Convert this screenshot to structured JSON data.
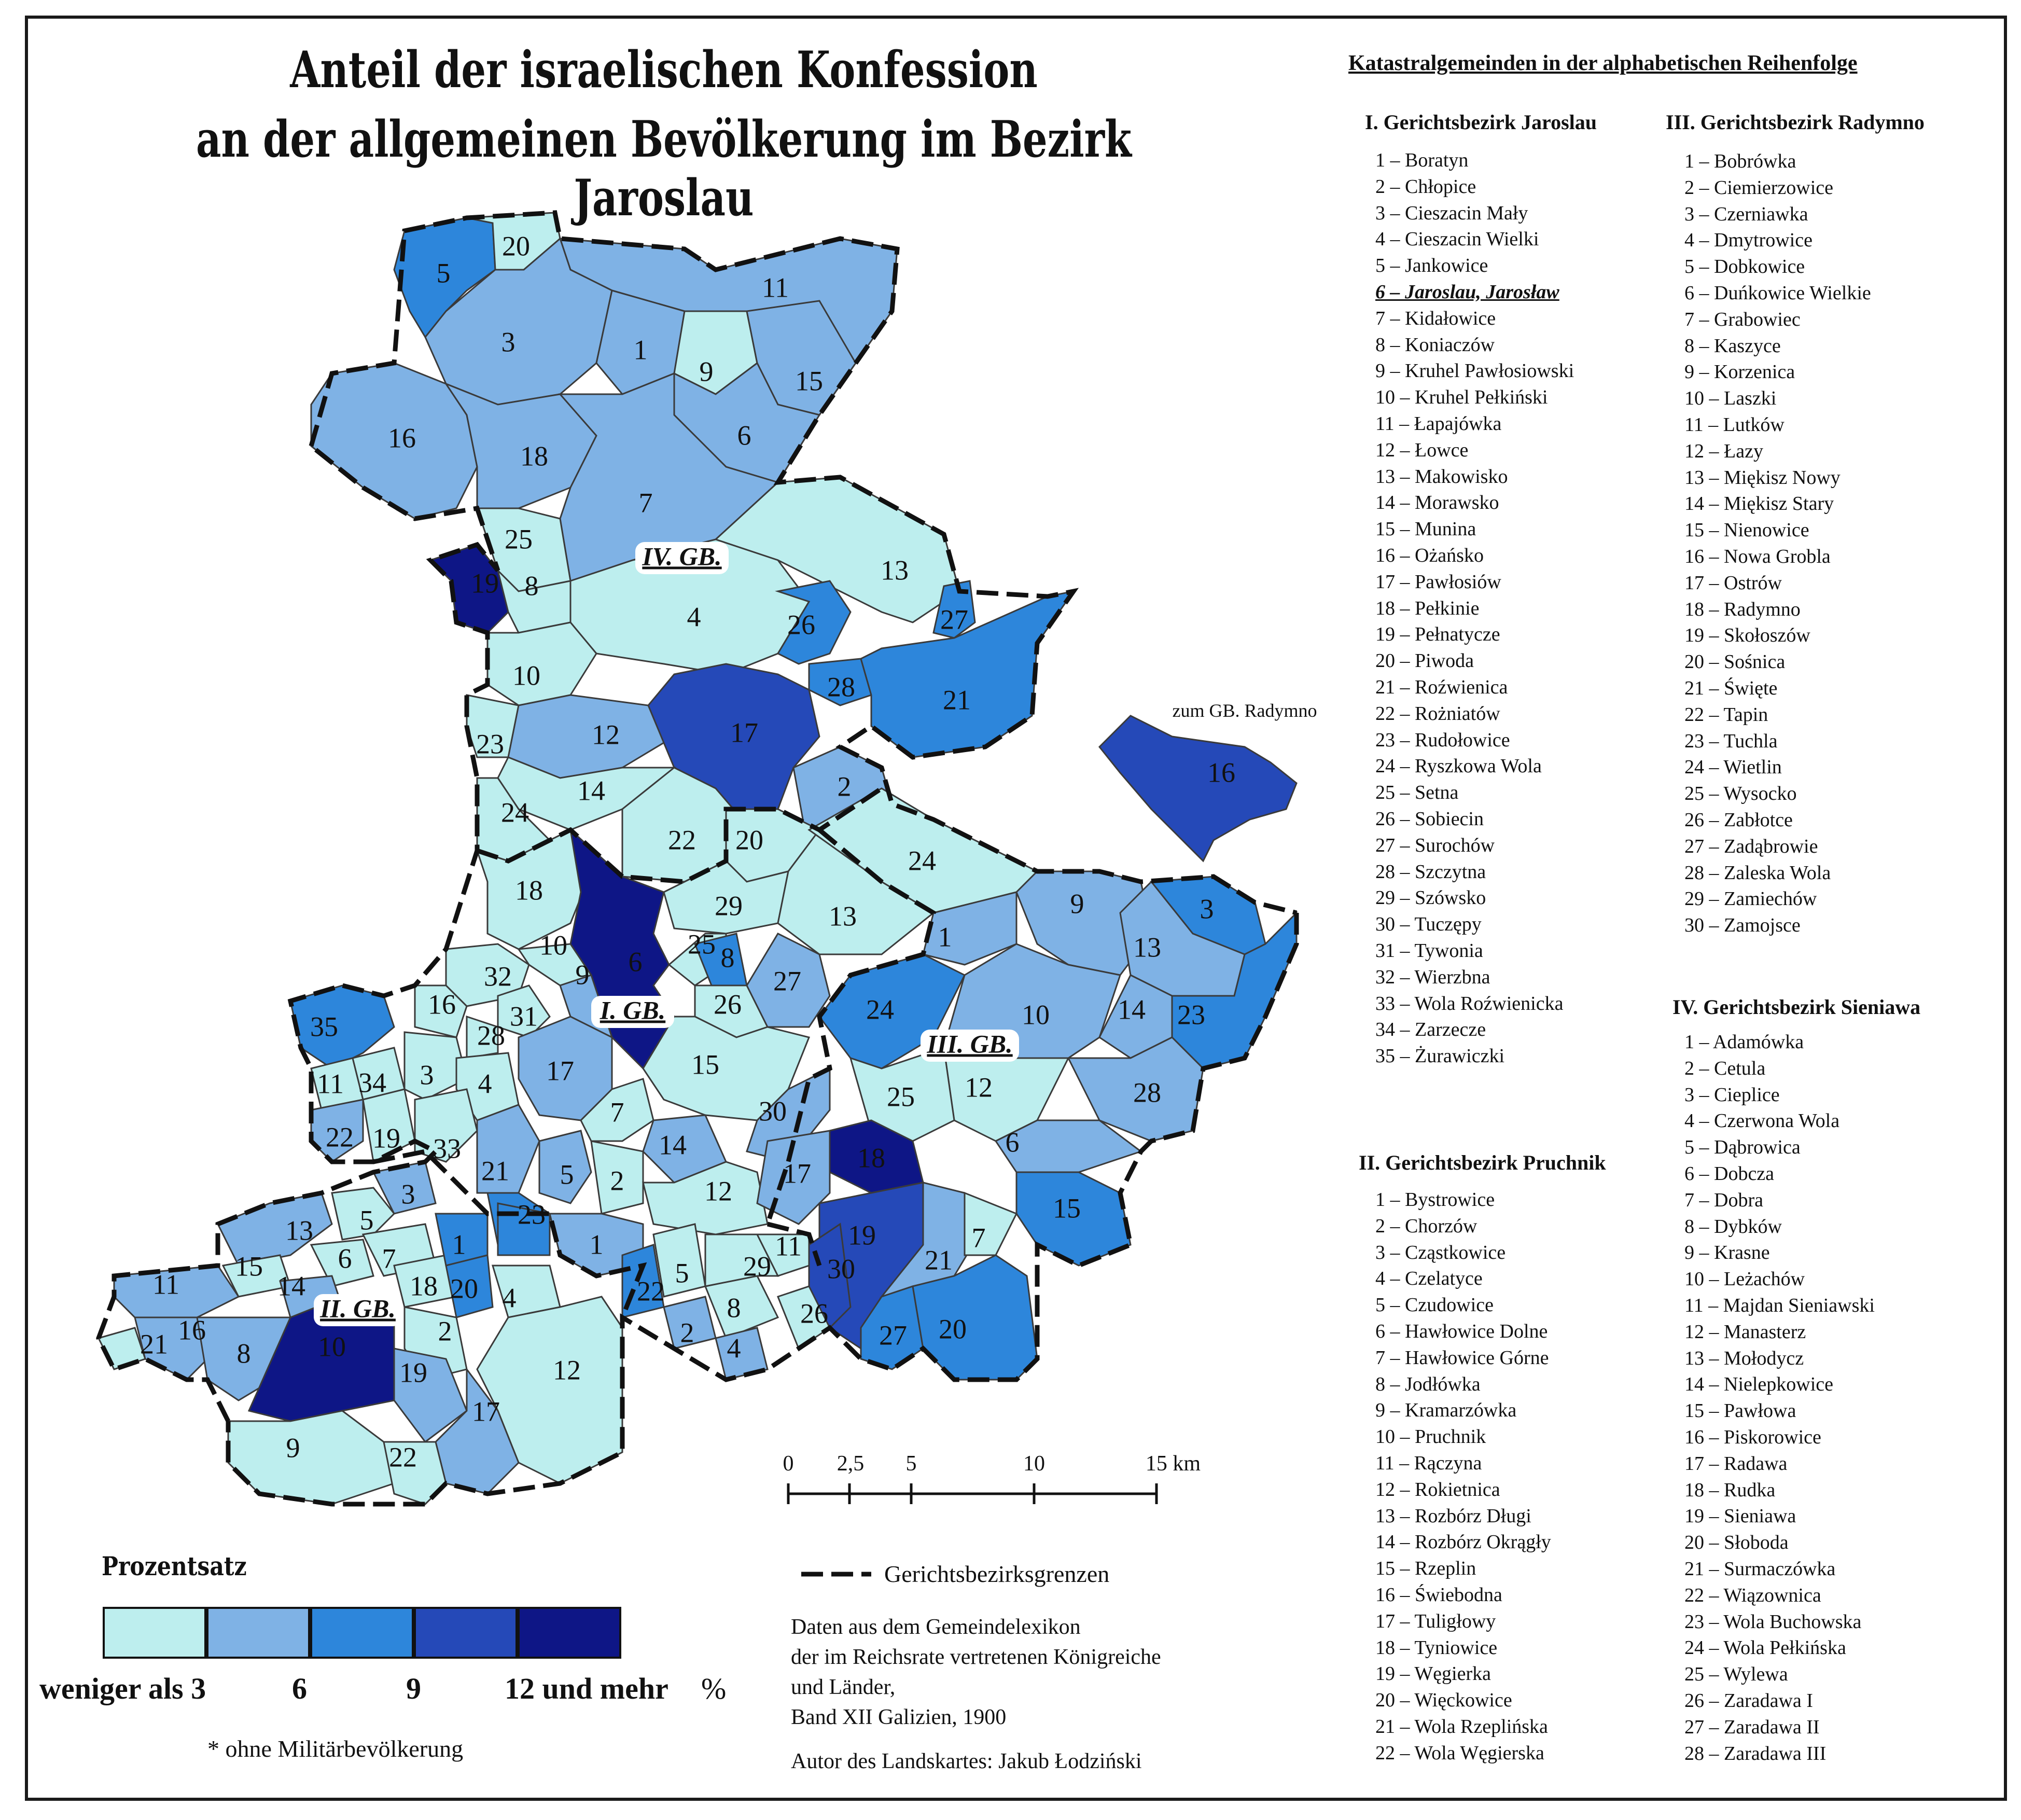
{
  "title": {
    "line1": "Anteil der israelischen Konfession",
    "line2": "an der allgemeinen Bevölkerung im Bezirk Jaroslau"
  },
  "colors": {
    "class1": "#bdeeee",
    "class2": "#7fb2e5",
    "class3": "#2d86db",
    "class4": "#2549b8",
    "class5": "#0e1686",
    "border": "#3a3a3a",
    "district_border": "#111111"
  },
  "map": {
    "district_labels": [
      "IV. GB.",
      "I. GB.",
      "III. GB.",
      "II. GB."
    ],
    "annotation": "zum GB. Radymno",
    "municipality_numbers": {
      "district_IV": [
        "20",
        "5",
        "11",
        "3",
        "1",
        "9",
        "15",
        "16",
        "18",
        "6",
        "7",
        "25",
        "19",
        "8",
        "13",
        "4",
        "26",
        "27",
        "10",
        "28",
        "21",
        "23",
        "12",
        "17",
        "2",
        "14",
        "24",
        "22",
        "20",
        "24",
        "18"
      ],
      "district_radymno_exclave": [
        "16"
      ],
      "district_I": [
        "29",
        "13",
        "10",
        "9",
        "6",
        "25",
        "8",
        "32",
        "16",
        "31",
        "35",
        "28",
        "26",
        "27",
        "11",
        "34",
        "3",
        "4",
        "17",
        "15",
        "7",
        "22",
        "19",
        "33",
        "21",
        "14",
        "5",
        "2",
        "12",
        "30"
      ],
      "district_III": [
        "9",
        "3",
        "1",
        "13",
        "24",
        "10",
        "14",
        "23",
        "12",
        "25",
        "28",
        "6",
        "18",
        "17",
        "15",
        "19",
        "21",
        "7",
        "30",
        "27",
        "20"
      ],
      "district_II": [
        "13",
        "5",
        "3",
        "6",
        "7",
        "15",
        "14",
        "18",
        "11",
        "1",
        "20",
        "4",
        "21",
        "16",
        "8",
        "10",
        "2",
        "19",
        "12",
        "17",
        "9",
        "22",
        "23",
        "1",
        "5",
        "22",
        "29",
        "8",
        "2",
        "4",
        "11",
        "26"
      ]
    },
    "scale": {
      "labels": [
        "0",
        "2,5",
        "5",
        "10",
        "15 km"
      ]
    },
    "legend_border_label": "Gerichtsbezirksgrenzen"
  },
  "legend": {
    "title": "Prozentsatz",
    "labels": [
      "weniger als 3",
      "6",
      "9",
      "12 und mehr",
      "%"
    ],
    "note": "* ohne Militärbevölkerung"
  },
  "source": {
    "lines": [
      "Daten aus dem Gemeindelexikon",
      "der im Reichsrate vertretenen Königreiche",
      "und Länder,",
      "Band XII Galizien, 1900"
    ],
    "author": "Autor des Landskartes: Jakub Łodziński"
  },
  "lists": {
    "title": "Katastralgemeinden in der alphabetischen Reihenfolge",
    "jaroslau": {
      "header": "I. Gerichtsbezirk Jaroslau",
      "items": [
        "1 – Boratyn",
        "2 – Chłopice",
        "3 – Cieszacin Mały",
        "4 – Cieszacin Wielki",
        "5 – Jankowice",
        "6 – Jaroslau, Jarosław",
        "7 – Kidałowice",
        "8 – Koniaczów",
        "9 – Kruhel Pawłosiowski",
        "10 – Kruhel Pełkiński",
        "11 – Łapajówka",
        "12 – Łowce",
        "13 – Makowisko",
        "14 – Morawsko",
        "15 – Munina",
        "16 – Ożańsko",
        "17 – Pawłosiów",
        "18 – Pełkinie",
        "19 – Pełnatycze",
        "20 – Piwoda",
        "21 – Roźwienica",
        "22 – Rożniatów",
        "23 – Rudołowice",
        "24 – Ryszkowa Wola",
        "25 – Setna",
        "26 – Sobiecin",
        "27 – Surochów",
        "28 – Szczytna",
        "29 – Szówsko",
        "30 – Tuczępy",
        "31 – Tywonia",
        "32 – Wierzbna",
        "33 – Wola Roźwienicka",
        "34 – Zarzecze",
        "35 – Żurawiczki"
      ]
    },
    "pruchnik": {
      "header": "II. Gerichtsbezirk Pruchnik",
      "items": [
        "1 – Bystrowice",
        "2 – Chorzów",
        "3 – Cząstkowice",
        "4 – Czelatyce",
        "5 – Czudowice",
        "6 – Hawłowice Dolne",
        "7 – Hawłowice Górne",
        "8 – Jodłówka",
        "9 – Kramarzówka",
        "10 – Pruchnik",
        "11 – Rączyna",
        "12 – Rokietnica",
        "13 – Rozbórz Długi",
        "14 – Rozbórz Okrągły",
        "15 – Rzeplin",
        "16 – Świebodna",
        "17 – Tuligłowy",
        "18 – Tyniowice",
        "19 – Węgierka",
        "20 – Więckowice",
        "21 – Wola Rzeplińska",
        "22 – Wola Węgierska"
      ]
    },
    "radymno": {
      "header": "III. Gerichtsbezirk Radymno",
      "items": [
        "1 – Bobrówka",
        "2 – Ciemierzowice",
        "3 – Czerniawka",
        "4 – Dmytrowice",
        "5 – Dobkowice",
        "6 – Duńkowice Wielkie",
        "7 – Grabowiec",
        "8 – Kaszyce",
        "9 – Korzenica",
        "10 – Laszki",
        "11 – Lutków",
        "12 – Łazy",
        "13 – Miękisz Nowy",
        "14 – Miękisz Stary",
        "15 – Nienowice",
        "16 – Nowa Grobla",
        "17 – Ostrów",
        "18 – Radymno",
        "19 – Skołoszów",
        "20 – Sośnica",
        "21 – Święte",
        "22 – Tapin",
        "23 – Tuchla",
        "24 – Wietlin",
        "25 – Wysocko",
        "26 – Zabłotce",
        "27 – Zadąbrowie",
        "28 – Zaleska Wola",
        "29 – Zamiechów",
        "30 – Zamojsce"
      ]
    },
    "sieniawa": {
      "header": "IV. Gerichtsbezirk Sieniawa",
      "items": [
        "1 – Adamówka",
        "2 – Cetula",
        "3 – Cieplice",
        "4 – Czerwona Wola",
        "5 – Dąbrowica",
        "6 – Dobcza",
        "7 – Dobra",
        "8 – Dybków",
        "9 – Krasne",
        "10 – Leżachów",
        "11 – Majdan Sieniawski",
        "12 – Manasterz",
        "13 – Mołodycz",
        "14 – Nielepkowice",
        "15 – Pawłowa",
        "16 – Piskorowice",
        "17 – Radawa",
        "18 – Rudka",
        "19 – Sieniawa",
        "20 – Słoboda",
        "21 – Surmaczówka",
        "22 – Wiązownica",
        "23 – Wola Buchowska",
        "24 – Wola Pełkińska",
        "25 – Wylewa",
        "26 – Zaradawa I",
        "27 – Zaradawa II",
        "28 – Zaradawa III"
      ]
    }
  }
}
